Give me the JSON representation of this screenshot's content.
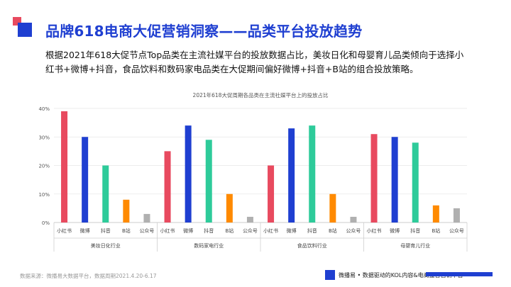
{
  "header": {
    "title": "品牌618电商大促营销洞察——品类平台投放趋势",
    "description": "根据2021年618大促节点Top品类在主流社媒平台的投放数据占比，美妆日化和母婴育儿品类倾向于选择小红书+微博+抖音，食品饮料和数码家电品类在大促期间偏好微博+抖音+B站的组合投放策略。"
  },
  "chart_data": {
    "type": "bar",
    "title": "2021年618大促周期各品类在主流社媒平台上的投放占比",
    "ylim": [
      0,
      40
    ],
    "yticks": [
      "0%",
      "10%",
      "20%",
      "30%",
      "40%"
    ],
    "grid": true,
    "platforms": [
      "小红书",
      "微博",
      "抖音",
      "B站",
      "公众号"
    ],
    "groups": [
      {
        "name": "美妆日化行业",
        "values": [
          39,
          30,
          20,
          8,
          3
        ]
      },
      {
        "name": "数码家电行业",
        "values": [
          25,
          34,
          29,
          10,
          2
        ]
      },
      {
        "name": "食品饮料行业",
        "values": [
          20,
          33,
          34,
          10,
          2
        ]
      },
      {
        "name": "母婴育儿行业",
        "values": [
          31,
          30,
          28,
          6,
          5
        ]
      }
    ],
    "colors": [
      "#e84a5f",
      "#1f3fd1",
      "#2ecb9a",
      "#ff8a00",
      "#b0b0b0"
    ]
  },
  "footer": {
    "source": "数据来源：微播易大数据平台，数据周期2021.4.20-6.17",
    "slogan": "微播易 • 数据驱动的KOL内容&电商整合营销平台"
  }
}
